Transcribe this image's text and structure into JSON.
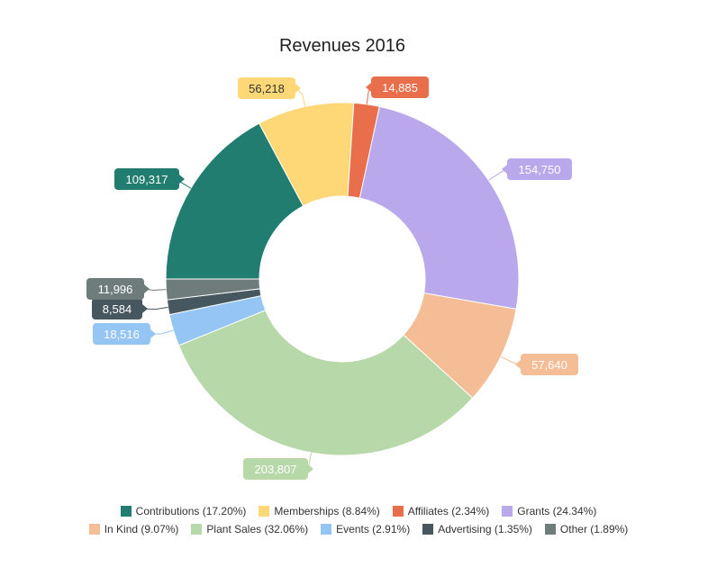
{
  "chart_data": {
    "type": "pie",
    "title": "Revenues 2016",
    "donut": true,
    "slices": [
      {
        "label": "Contributions",
        "value": 109317,
        "value_label": "109,317",
        "percent": "17.20%",
        "color": "#217d6f"
      },
      {
        "label": "Memberships",
        "value": 56218,
        "value_label": "56,218",
        "percent": "8.84%",
        "color": "#fed876"
      },
      {
        "label": "Affiliates",
        "value": 14885,
        "value_label": "14,885",
        "percent": "2.34%",
        "color": "#e86e4c"
      },
      {
        "label": "Grants",
        "value": 154750,
        "value_label": "154,750",
        "percent": "24.34%",
        "color": "#baa8ec"
      },
      {
        "label": "In Kind",
        "value": 57640,
        "value_label": "57,640",
        "percent": "9.07%",
        "color": "#f5bd95"
      },
      {
        "label": "Plant Sales",
        "value": 203807,
        "value_label": "203,807",
        "percent": "32.06%",
        "color": "#b7d8a8"
      },
      {
        "label": "Events",
        "value": 18516,
        "value_label": "18,516",
        "percent": "2.91%",
        "color": "#95c6f3"
      },
      {
        "label": "Advertising",
        "value": 8584,
        "value_label": "8,584",
        "percent": "1.35%",
        "color": "#47575f"
      },
      {
        "label": "Other",
        "value": 11996,
        "value_label": "11,996",
        "percent": "1.89%",
        "color": "#6e7d7b"
      }
    ],
    "legend_position": "bottom"
  }
}
